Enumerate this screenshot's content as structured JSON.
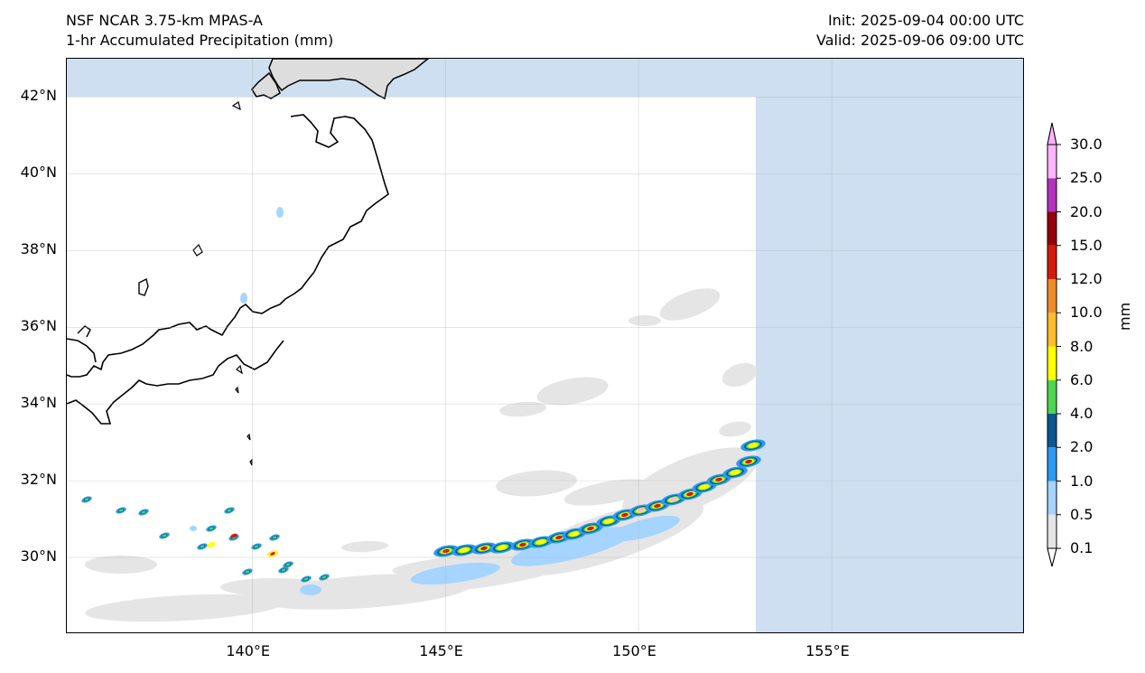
{
  "header": {
    "left_line1": "NSF NCAR 3.75-km MPAS-A",
    "left_line2": "1-hr Accumulated Precipitation (mm)",
    "right_line1": "Init: 2025-09-04 00:00 UTC",
    "right_line2": "Valid: 2025-09-06 09:00 UTC"
  },
  "map": {
    "extent": {
      "lon_min": 135.2,
      "lon_max": 160.0,
      "lat_min": 28.0,
      "lat_max": 43.0
    },
    "domain_edge": {
      "lon_max": 153.0,
      "lat_max": 42.0
    },
    "lat_ticks": [
      {
        "value": 42,
        "label": "42°N"
      },
      {
        "value": 40,
        "label": "40°N"
      },
      {
        "value": 38,
        "label": "38°N"
      },
      {
        "value": 36,
        "label": "36°N"
      },
      {
        "value": 34,
        "label": "34°N"
      },
      {
        "value": 32,
        "label": "32°N"
      },
      {
        "value": 30,
        "label": "30°N"
      }
    ],
    "lon_ticks": [
      {
        "value": 140,
        "label": "140°E"
      },
      {
        "value": 145,
        "label": "145°E"
      },
      {
        "value": 150,
        "label": "150°E"
      },
      {
        "value": 155,
        "label": "155°E"
      }
    ],
    "colors": {
      "outside_domain": "#cddff0",
      "land_outside": "#dddddd",
      "coast": "#000000"
    }
  },
  "colorbar": {
    "unit": "mm",
    "levels": [
      "0.1",
      "0.5",
      "1.0",
      "2.0",
      "4.0",
      "6.0",
      "8.0",
      "10.0",
      "12.0",
      "15.0",
      "20.0",
      "25.0",
      "30.0"
    ],
    "colors": [
      "#e5e5e5",
      "#a5d4ff",
      "#2a9af5",
      "#0a5790",
      "#4fd64f",
      "#ffff00",
      "#ffbd2c",
      "#f08c28",
      "#d41a0a",
      "#96000a",
      "#b432be",
      "#ffb4ff"
    ]
  }
}
